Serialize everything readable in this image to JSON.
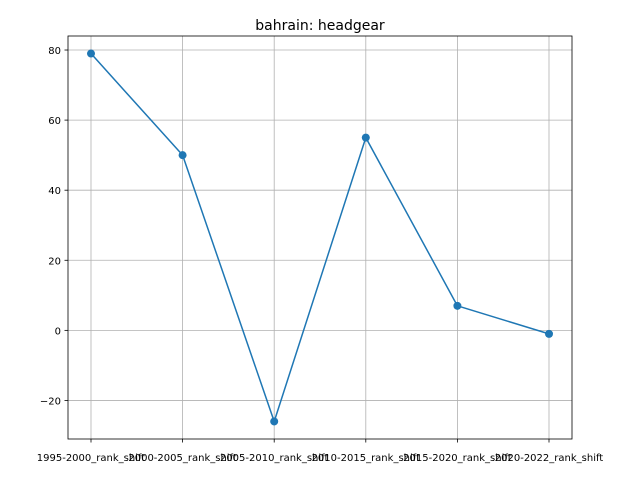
{
  "chart_data": {
    "type": "line",
    "title": "bahrain: headgear",
    "xlabel": "",
    "ylabel": "",
    "categories": [
      "1995-2000_rank_shift",
      "2000-2005_rank_shift",
      "2005-2010_rank_shift",
      "2010-2015_rank_shift",
      "2015-2020_rank_shift",
      "2020-2022_rank_shift"
    ],
    "series": [
      {
        "values": [
          79,
          50,
          -26,
          55,
          7,
          -1
        ],
        "color": "#1f77b4"
      }
    ],
    "ylim": [
      -31,
      84
    ],
    "yticks": [
      -20,
      0,
      20,
      40,
      60,
      80
    ],
    "grid": true,
    "legend": "none"
  }
}
